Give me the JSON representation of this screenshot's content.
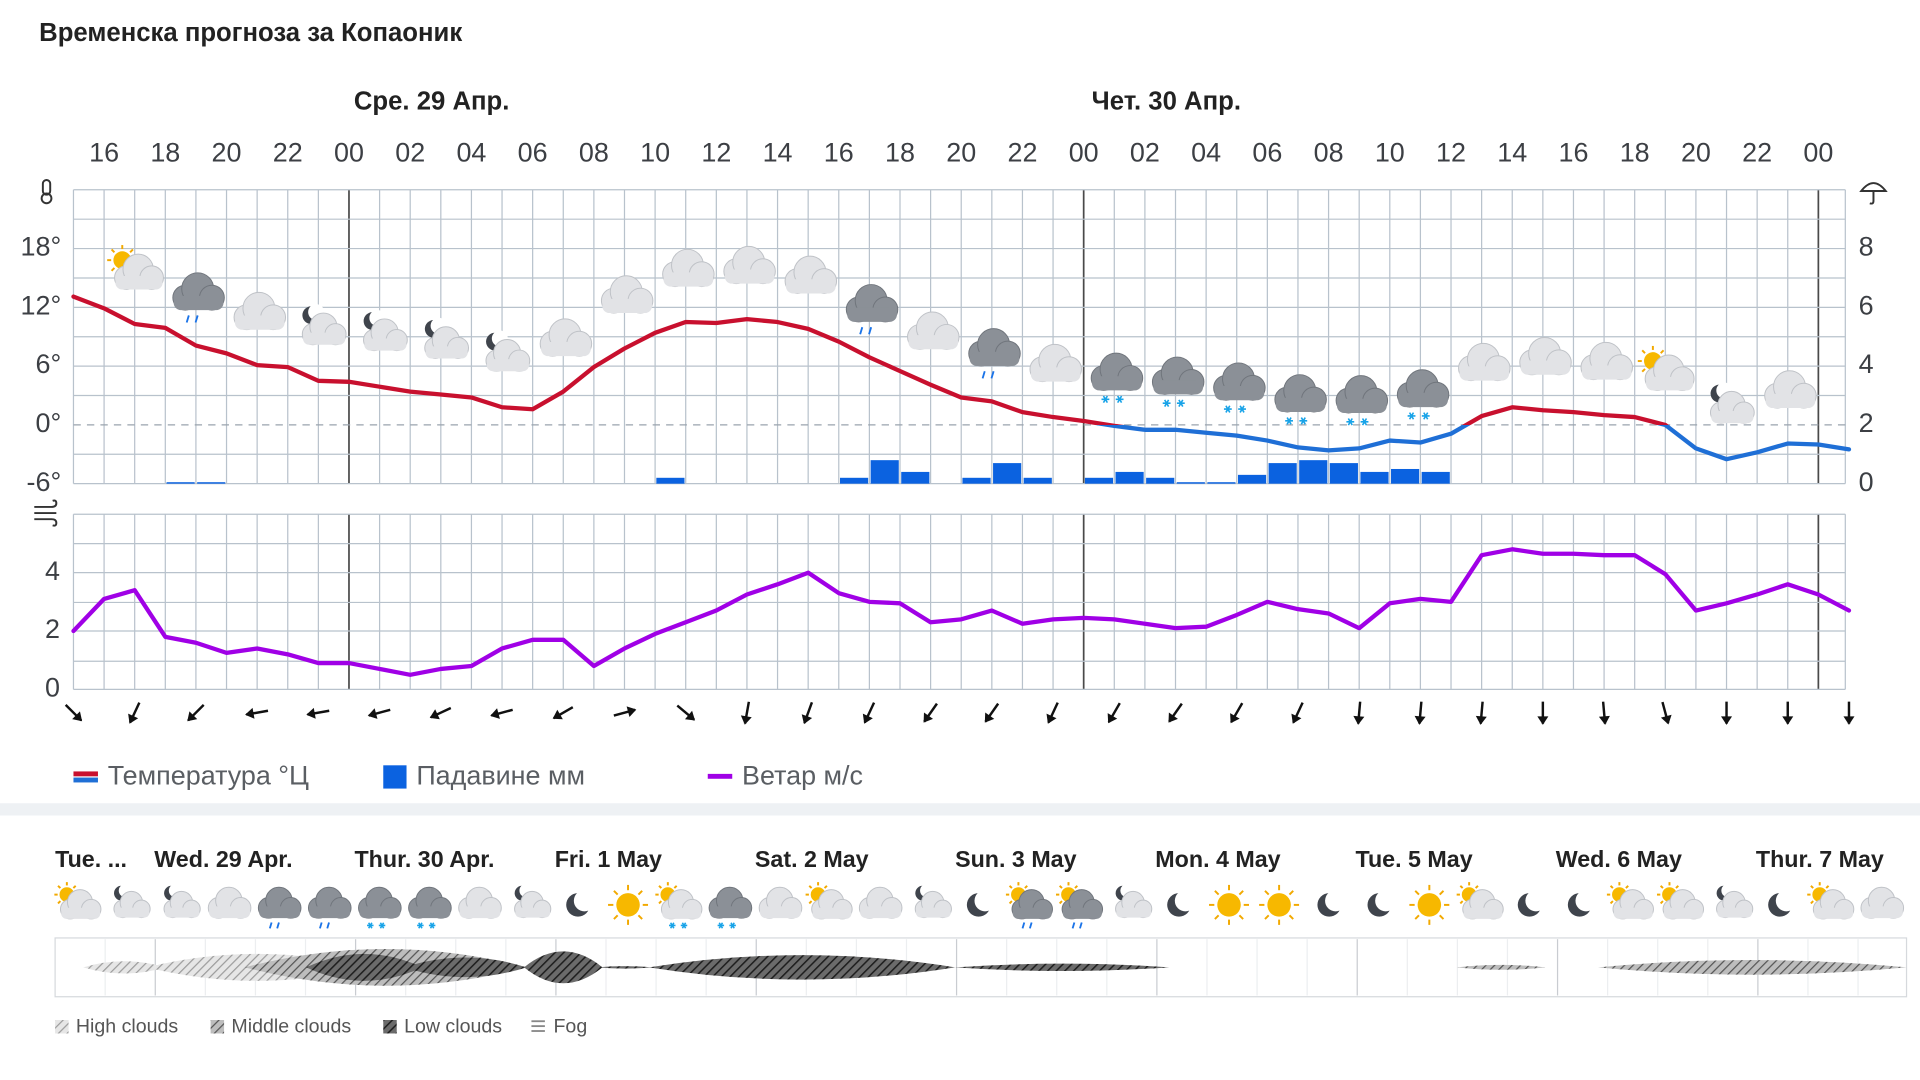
{
  "title": "Временска прогноза за Копаоник",
  "chart_data": [
    {
      "type": "line",
      "days": [
        "Сре. 29 Апр.",
        "Чет. 30 Апр."
      ],
      "categories": [
        null,
        "16",
        null,
        "18",
        null,
        "20",
        null,
        "22",
        null,
        "00",
        null,
        "02",
        null,
        "04",
        null,
        "06",
        null,
        "08",
        null,
        "10",
        null,
        "12",
        null,
        "14",
        null,
        "16",
        null,
        "18",
        null,
        "20",
        null,
        "22",
        null,
        "00",
        null,
        "02",
        null,
        "04",
        null,
        "06",
        null,
        "08",
        null,
        "10",
        null,
        "12",
        null,
        "14",
        null,
        "16",
        null,
        "18",
        null,
        "20",
        null,
        "22",
        null,
        "00",
        null
      ],
      "series": [
        {
          "name": "Температура °Ц",
          "color": "#c8102e",
          "negative_color": "#1f6fd6",
          "values": [
            13.1,
            11.9,
            10.3,
            9.9,
            8.1,
            7.3,
            6.1,
            5.9,
            4.5,
            4.4,
            3.9,
            3.4,
            3.1,
            2.8,
            1.8,
            1.6,
            3.4,
            5.9,
            7.8,
            9.4,
            10.5,
            10.4,
            10.8,
            10.5,
            9.8,
            8.5,
            6.9,
            5.5,
            4.1,
            2.8,
            2.4,
            1.3,
            0.8,
            0.4,
            -0.1,
            -0.5,
            -0.5,
            -0.8,
            -1.1,
            -1.6,
            -2.3,
            -2.6,
            -2.4,
            -1.6,
            -1.8,
            -0.9,
            0.9,
            1.8,
            1.5,
            1.3,
            1.0,
            0.8,
            0,
            -2.4,
            -3.5,
            -2.8,
            -1.9,
            -2.0,
            -2.5
          ]
        },
        {
          "name": "Падавине мм",
          "type": "bar",
          "axis": "y2",
          "color": "#0b62e0",
          "values": [
            0,
            0,
            0,
            0.05,
            0.05,
            0,
            0,
            0,
            0,
            0,
            0,
            0,
            0,
            0,
            0,
            0,
            0,
            0,
            0,
            0.2,
            0,
            0,
            0,
            0,
            0,
            0.2,
            0.8,
            0.4,
            0,
            0.2,
            0.7,
            0.2,
            0,
            0.2,
            0.4,
            0.2,
            0.05,
            0.05,
            0.3,
            0.7,
            0.8,
            0.7,
            0.4,
            0.5,
            0.4,
            0,
            0,
            0,
            0,
            0,
            0,
            0,
            0,
            0,
            0,
            0,
            0,
            0,
            0
          ]
        }
      ],
      "ylim": [
        -6,
        24
      ],
      "yticks": [
        {
          "value": -6,
          "label": "-6°"
        },
        {
          "value": 0,
          "label": "0°"
        },
        {
          "value": 6,
          "label": "6°"
        },
        {
          "value": 12,
          "label": "12°"
        },
        {
          "value": 18,
          "label": "18°"
        }
      ],
      "y2lim": [
        0,
        10
      ],
      "y2ticks": [
        0,
        2,
        4,
        6,
        8
      ],
      "grid": true
    },
    {
      "type": "line",
      "series": [
        {
          "name": "Ветар м/с",
          "color": "#a000e6",
          "values": [
            2.0,
            3.1,
            3.4,
            1.8,
            1.6,
            1.25,
            1.4,
            1.2,
            0.9,
            0.9,
            0.7,
            0.5,
            0.7,
            0.8,
            1.4,
            1.7,
            1.7,
            0.8,
            1.4,
            1.9,
            2.3,
            2.7,
            3.25,
            3.6,
            4.0,
            3.3,
            3.0,
            2.95,
            2.3,
            2.4,
            2.7,
            2.25,
            2.4,
            2.45,
            2.4,
            2.25,
            2.1,
            2.15,
            2.55,
            3.0,
            2.75,
            2.6,
            2.1,
            2.95,
            3.1,
            3.0,
            4.6,
            4.8,
            4.65,
            4.65,
            4.6,
            4.6,
            3.95,
            2.7,
            2.95,
            3.25,
            3.6,
            3.25,
            2.7
          ],
          "directions": [
            -45,
            null,
            25,
            null,
            45,
            null,
            80,
            null,
            80,
            null,
            75,
            null,
            65,
            null,
            75,
            null,
            60,
            null,
            -105,
            null,
            -50,
            null,
            10,
            null,
            20,
            null,
            25,
            null,
            35,
            null,
            35,
            null,
            25,
            null,
            30,
            null,
            35,
            null,
            30,
            null,
            25,
            null,
            5,
            null,
            5,
            null,
            5,
            null,
            0,
            null,
            -5,
            null,
            -15,
            null,
            0,
            null,
            0,
            null,
            0
          ]
        }
      ],
      "ylim": [
        0,
        6
      ],
      "yticks": [
        0,
        2,
        4
      ],
      "grid": true
    }
  ],
  "forecast": {
    "days": [
      "Tue. ...",
      "Wed. 29 Apr.",
      "Thur. 30 Apr.",
      "Fri. 1 May",
      "Sat. 2 May",
      "Sun. 3 May",
      "Mon. 4 May",
      "Tue. 5 May",
      "Wed. 6 May",
      "Thur. 7 May"
    ],
    "cloud_legend": [
      "High clouds",
      "Middle clouds",
      "Low clouds",
      "Fog"
    ]
  }
}
